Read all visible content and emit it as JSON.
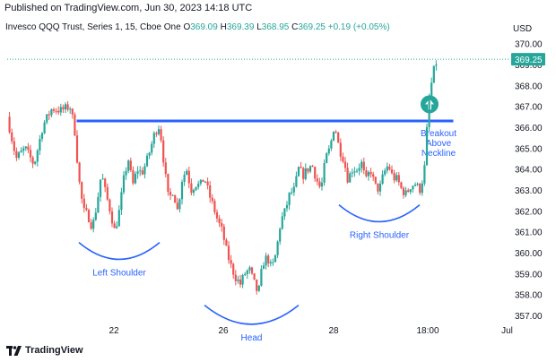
{
  "published": "Published on TradingView.com, Jun 30, 2023 14:18 UTC",
  "brand": "TradingView",
  "colors": {
    "up": "#26a69a",
    "down": "#ef5350",
    "annotation": "#2962ff",
    "price_tag": "#26a69a",
    "arrow": "#26a69a"
  },
  "chart_data": {
    "type": "candlestick",
    "instrument": "Invesco QQQ Trust, Series 1, 15, Cboe One",
    "legend": {
      "open_label": "O",
      "open": "369.09",
      "high_label": "H",
      "high": "369.39",
      "low_label": "L",
      "low": "368.95",
      "close_label": "C",
      "close": "369.25",
      "change": "+0.19 (+0.05%)"
    },
    "currency": "USD",
    "last_price": "369.25",
    "ylim": [
      356.4,
      370.8
    ],
    "y_ticks": [
      "370.00",
      "369.00",
      "368.00",
      "367.00",
      "366.00",
      "365.00",
      "364.00",
      "363.00",
      "362.00",
      "361.00",
      "360.00",
      "359.00",
      "358.00",
      "357.00"
    ],
    "x_ticks": [
      "22",
      "26",
      "28",
      "18:00",
      "Jul"
    ],
    "grid": false,
    "price_path": [
      [
        0,
        366.5
      ],
      [
        2,
        364.5
      ],
      [
        4,
        365.0
      ],
      [
        6,
        364.2
      ],
      [
        8,
        366.1
      ],
      [
        10,
        366.9
      ],
      [
        12,
        366.8
      ],
      [
        14,
        367.0
      ],
      [
        15,
        366.0
      ],
      [
        16,
        363.5
      ],
      [
        17,
        362.0
      ],
      [
        18,
        361.8
      ],
      [
        19,
        361.2
      ],
      [
        20,
        362.3
      ],
      [
        21,
        363.8
      ],
      [
        22,
        362.8
      ],
      [
        23,
        362.0
      ],
      [
        24,
        361.0
      ],
      [
        25,
        362.0
      ],
      [
        26,
        363.5
      ],
      [
        27,
        364.5
      ],
      [
        28,
        363.2
      ],
      [
        29,
        364.0
      ],
      [
        30,
        363.8
      ],
      [
        31,
        364.3
      ],
      [
        32,
        365.0
      ],
      [
        33,
        365.8
      ],
      [
        34,
        366.1
      ],
      [
        35,
        364.2
      ],
      [
        36,
        362.5
      ],
      [
        37,
        363.0
      ],
      [
        38,
        362.0
      ],
      [
        39,
        363.5
      ],
      [
        40,
        364.0
      ],
      [
        41,
        363.0
      ],
      [
        42,
        363.3
      ],
      [
        43,
        363.2
      ],
      [
        44,
        363.6
      ],
      [
        45,
        362.8
      ],
      [
        46,
        362.2
      ],
      [
        47,
        361.5
      ],
      [
        48,
        361.0
      ],
      [
        49,
        360.0
      ],
      [
        50,
        359.3
      ],
      [
        51,
        358.8
      ],
      [
        52,
        358.5
      ],
      [
        53,
        359.0
      ],
      [
        54,
        359.2
      ],
      [
        55,
        358.6
      ],
      [
        56,
        358.0
      ],
      [
        57,
        359.5
      ],
      [
        58,
        359.8
      ],
      [
        59,
        359.2
      ],
      [
        60,
        360.0
      ],
      [
        61,
        361.5
      ],
      [
        62,
        362.0
      ],
      [
        63,
        362.8
      ],
      [
        64,
        363.0
      ],
      [
        65,
        364.0
      ],
      [
        66,
        363.7
      ],
      [
        67,
        364.0
      ],
      [
        68,
        364.2
      ],
      [
        69,
        363.5
      ],
      [
        70,
        363.0
      ],
      [
        71,
        364.5
      ],
      [
        72,
        365.0
      ],
      [
        73,
        366.2
      ],
      [
        74,
        365.0
      ],
      [
        75,
        364.5
      ],
      [
        76,
        363.5
      ],
      [
        77,
        364.0
      ],
      [
        78,
        364.0
      ],
      [
        79,
        364.3
      ],
      [
        80,
        363.4
      ],
      [
        81,
        364.0
      ],
      [
        82,
        363.2
      ],
      [
        83,
        363.0
      ],
      [
        84,
        363.8
      ],
      [
        85,
        364.2
      ],
      [
        86,
        363.6
      ],
      [
        87,
        363.5
      ],
      [
        88,
        363.0
      ],
      [
        89,
        362.8
      ],
      [
        90,
        363.2
      ],
      [
        91,
        363.3
      ],
      [
        92,
        363.0
      ],
      [
        93,
        363.8
      ],
      [
        94,
        367.2
      ],
      [
        95,
        368.6
      ],
      [
        96,
        369.3
      ]
    ],
    "neckline": {
      "price": 366.3,
      "label_lines": [
        "Breakout",
        "Above",
        "Neckline"
      ]
    },
    "annotations": [
      {
        "label": "Left Shoulder",
        "from": 16,
        "to": 34,
        "depth": 0.6
      },
      {
        "label": "Head",
        "from": 44,
        "to": 65,
        "depth": 0.9
      },
      {
        "label": "Right Shoulder",
        "from": 74,
        "to": 92,
        "depth": 0.6
      }
    ]
  }
}
